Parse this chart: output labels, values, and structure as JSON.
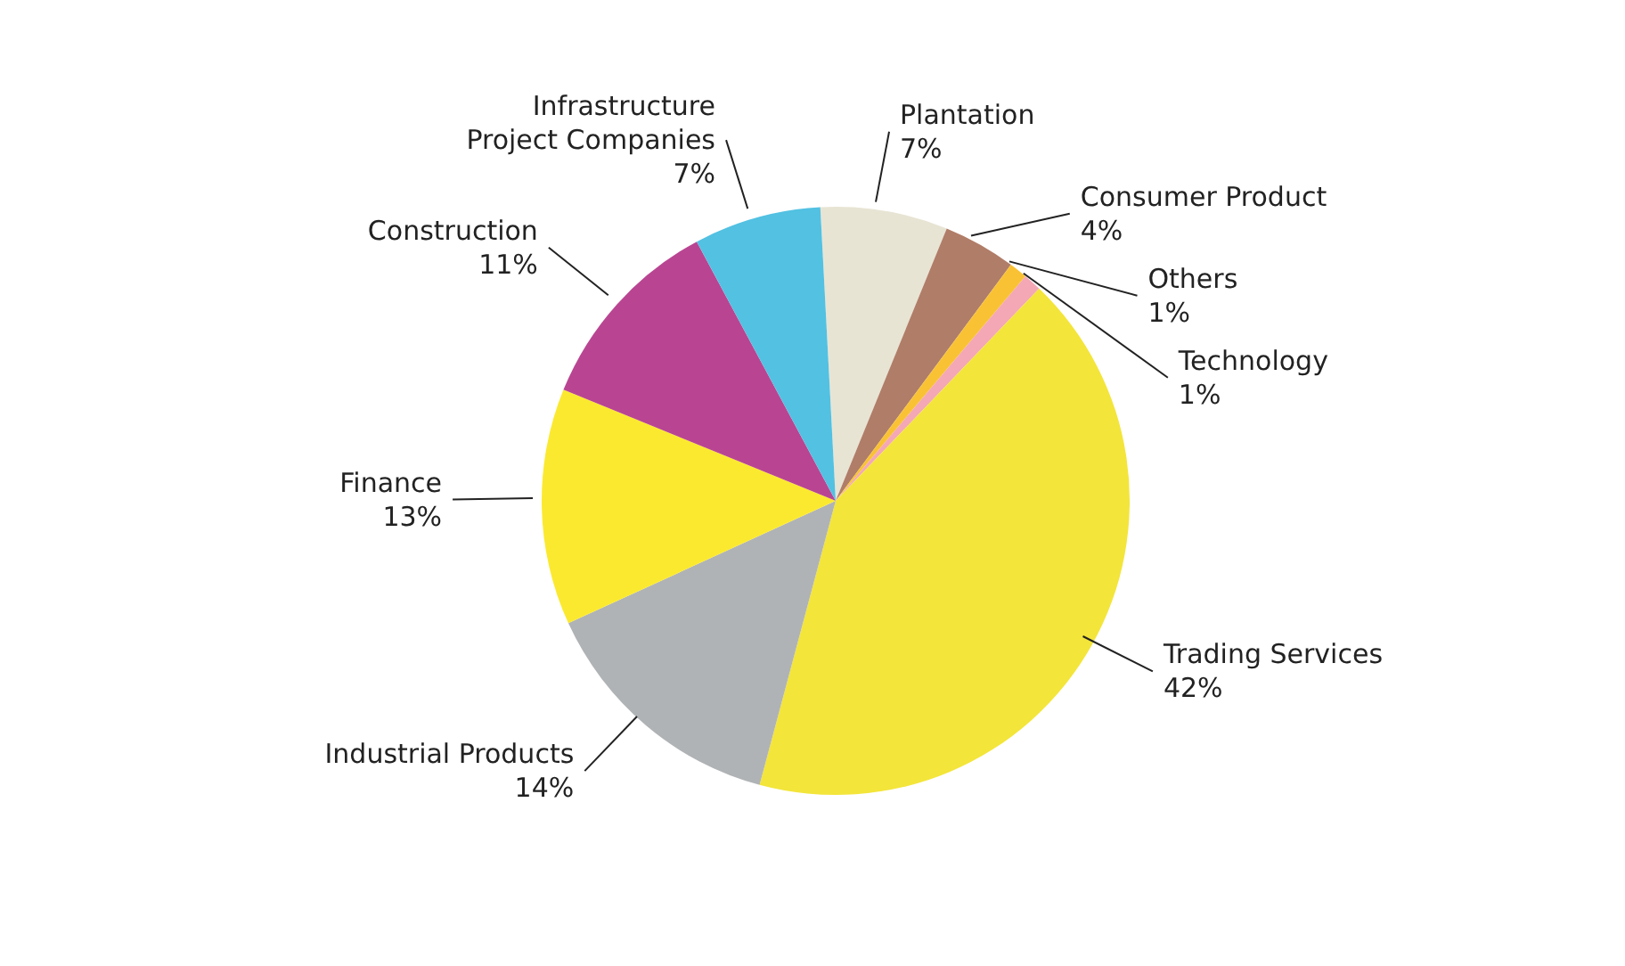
{
  "chart_data": {
    "type": "pie",
    "categories": [
      "Plantation",
      "Consumer Product",
      "Others",
      "Technology",
      "Trading Services",
      "Industrial Products",
      "Finance",
      "Construction",
      "Infrastructure Project Companies"
    ],
    "values": [
      7,
      4,
      1,
      1,
      42,
      14,
      13,
      11,
      7
    ],
    "value_labels": [
      "7%",
      "4%",
      "1%",
      "1%",
      "42%",
      "14%",
      "13%",
      "11%",
      "7%"
    ],
    "colors": [
      "#e8e4d4",
      "#b07d68",
      "#f9c234",
      "#f4a7b5",
      "#f3e53a",
      "#b0b3b5",
      "#fbe92f",
      "#b94592",
      "#52c1e2"
    ],
    "legend": false
  }
}
